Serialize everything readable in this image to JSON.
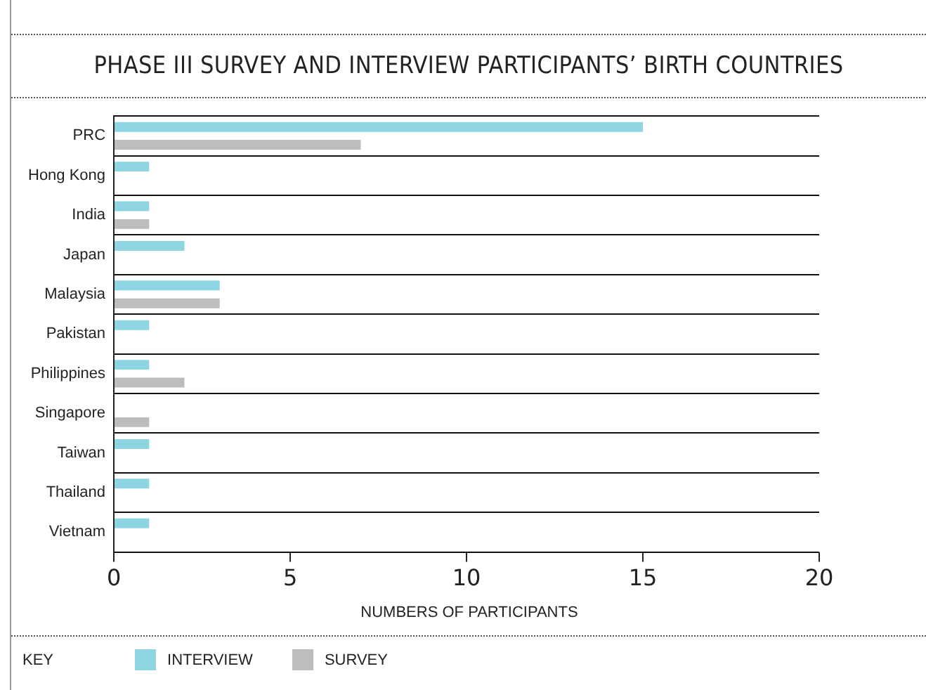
{
  "chart_data": {
    "type": "bar",
    "orientation": "horizontal",
    "title": "PHASE III SURVEY AND INTERVIEW PARTICIPANTS’ BIRTH COUNTRIES",
    "xlabel": "NUMBERS OF PARTICIPANTS",
    "legend_title": "KEY",
    "legend": "bottom",
    "grid": "y",
    "categories": [
      "PRC",
      "Hong Kong",
      "India",
      "Japan",
      "Malaysia",
      "Pakistan",
      "Philippines",
      "Singapore",
      "Taiwan",
      "Thailand",
      "Vietnam"
    ],
    "series": [
      {
        "name": "INTERVIEW",
        "color": "#8dd5e3",
        "values": [
          15,
          1,
          1,
          2,
          3,
          1,
          1,
          null,
          1,
          1,
          1
        ]
      },
      {
        "name": "SURVEY",
        "color": "#bdbdbd",
        "values": [
          7,
          null,
          1,
          null,
          3,
          null,
          2,
          1,
          null,
          null,
          null
        ]
      }
    ],
    "xlim": [
      0,
      20
    ],
    "xticks": [
      0,
      5,
      10,
      15,
      20
    ]
  }
}
